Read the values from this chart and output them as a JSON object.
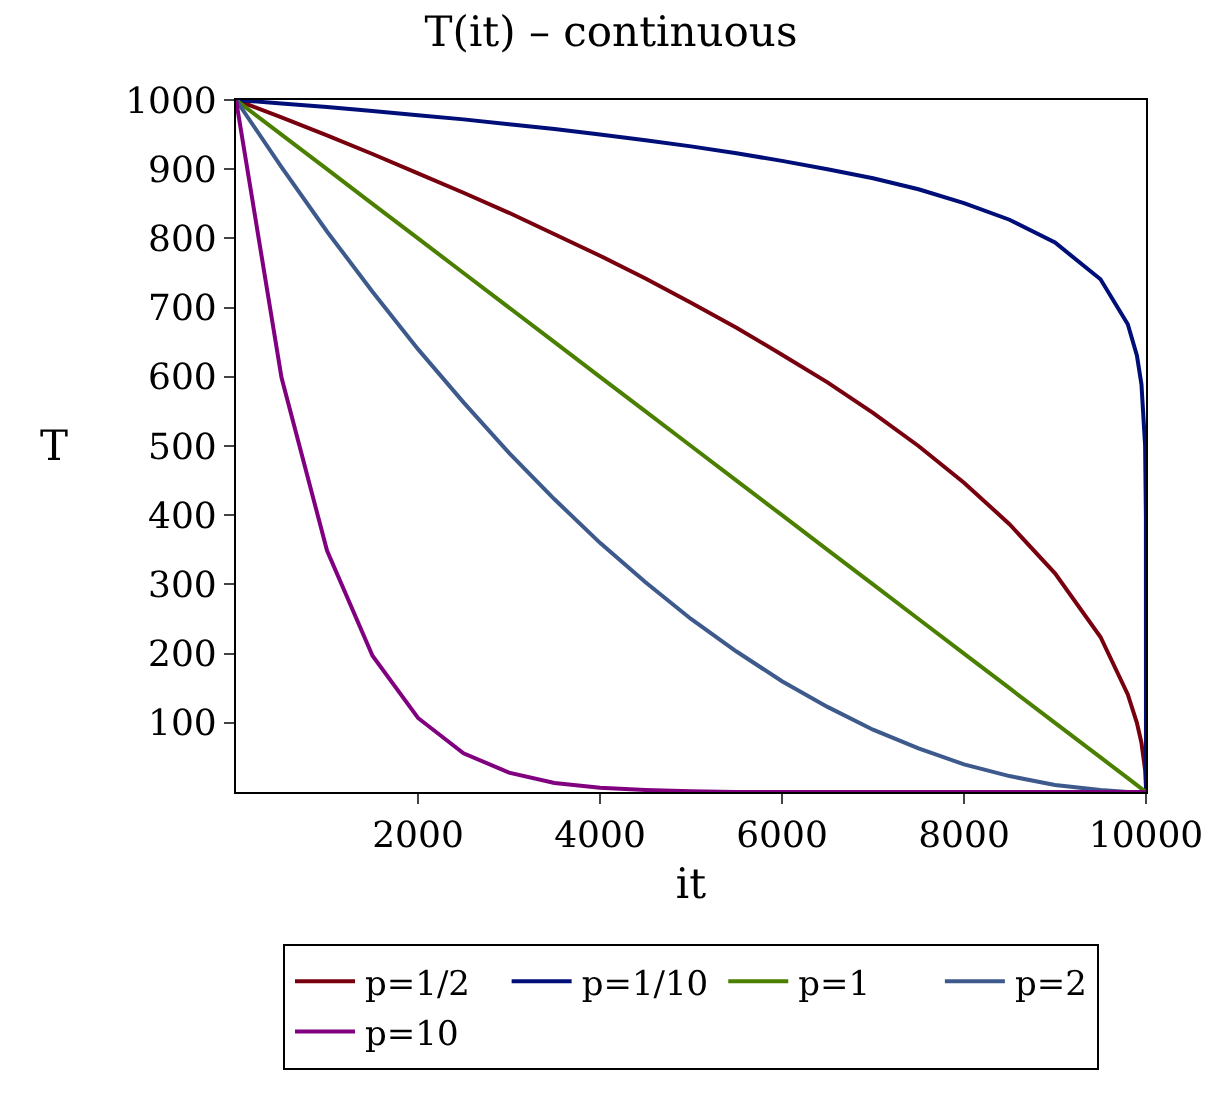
{
  "chart_data": {
    "type": "line",
    "title": "T(it) – continuous",
    "xlabel": "it",
    "ylabel": "T",
    "x": [
      0,
      500,
      1000,
      1500,
      2000,
      2500,
      3000,
      3500,
      4000,
      4500,
      5000,
      5500,
      6000,
      6500,
      7000,
      7500,
      8000,
      8500,
      9000,
      9500,
      9800,
      9900,
      9950,
      9990,
      9999,
      10000
    ],
    "series": [
      {
        "name": "p=1/2",
        "color": "#78000e",
        "values": [
          1000,
          975,
          949,
          922,
          894,
          866,
          837,
          806,
          775,
          742,
          707,
          671,
          632,
          592,
          548,
          500,
          447,
          387,
          316,
          224,
          141,
          100,
          71,
          32,
          10,
          0
        ]
      },
      {
        "name": "p=1/10",
        "color": "#000e78",
        "values": [
          1000,
          995,
          990,
          984,
          978,
          972,
          965,
          958,
          950,
          942,
          933,
          923,
          912,
          900,
          887,
          871,
          851,
          827,
          794,
          741,
          676,
          631,
          589,
          501,
          398,
          0
        ]
      },
      {
        "name": "p=1",
        "color": "#4a7f00",
        "values": [
          1000,
          950,
          900,
          850,
          800,
          750,
          700,
          650,
          600,
          550,
          500,
          450,
          400,
          350,
          300,
          250,
          200,
          150,
          100,
          50,
          20,
          10,
          5,
          1,
          0,
          0
        ]
      },
      {
        "name": "p=2",
        "color": "#3e5a8c",
        "values": [
          1000,
          903,
          810,
          723,
          640,
          563,
          490,
          423,
          360,
          303,
          250,
          203,
          160,
          123,
          90,
          63,
          40,
          23,
          10,
          3,
          0,
          0,
          0,
          0,
          0,
          0
        ]
      },
      {
        "name": "p=10",
        "color": "#800080",
        "values": [
          1000,
          599,
          349,
          197,
          107,
          56,
          28,
          13,
          6,
          3,
          1,
          0,
          0,
          0,
          0,
          0,
          0,
          0,
          0,
          0,
          0,
          0,
          0,
          0,
          0,
          0
        ]
      }
    ],
    "xlim": [
      0,
      10000
    ],
    "xticks": [
      2000,
      4000,
      6000,
      8000,
      10000
    ],
    "ylim": [
      0,
      1000
    ],
    "yticks": [
      100,
      200,
      300,
      400,
      500,
      600,
      700,
      800,
      900,
      1000
    ],
    "grid": false,
    "legend": "bottom",
    "line_style": "solid",
    "marker": "none"
  }
}
